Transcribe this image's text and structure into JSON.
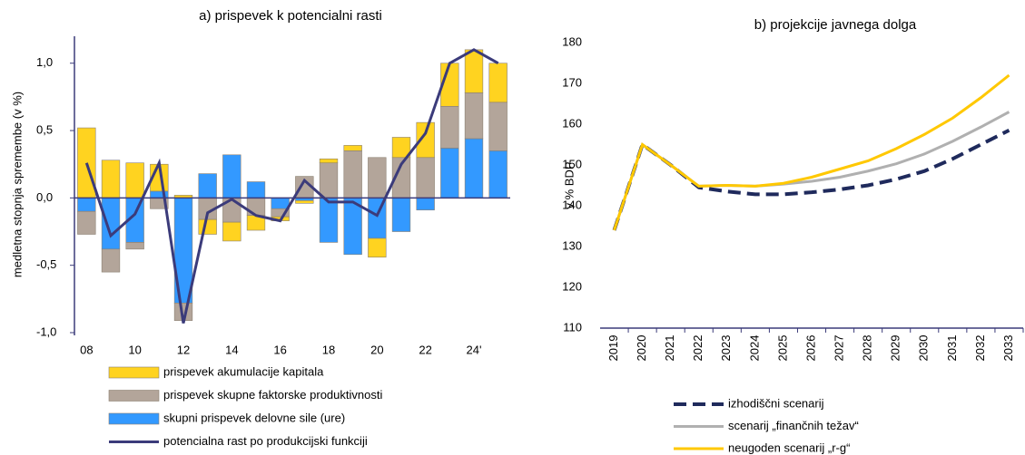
{
  "chart_data": [
    {
      "type": "bar",
      "stacked": true,
      "title": "a) prispevek k potencialni rasti",
      "ylabel": "medletna stopnja spremembe (v %)",
      "categories": [
        "08",
        null,
        "10",
        null,
        "12",
        null,
        "14",
        null,
        "16",
        null,
        "18",
        null,
        "20",
        null,
        "22",
        null,
        "24'",
        null
      ],
      "ylim": [
        -1.0,
        1.2
      ],
      "yticks": [
        {
          "value": 1.0,
          "label": "1,0"
        },
        {
          "value": 0.5,
          "label": "0,5"
        },
        {
          "value": 0,
          "label": "0,0"
        },
        {
          "value": -0.5,
          "label": "-0,5"
        },
        {
          "value": -1.0,
          "label": "-1,0"
        }
      ],
      "series": [
        {
          "name": "skupni prispevek delovne sile (ure)",
          "type": "bar",
          "color": "#3399ff",
          "values": [
            -0.1,
            -0.38,
            -0.33,
            0.05,
            -0.78,
            0.18,
            0.32,
            0.12,
            -0.08,
            -0.02,
            -0.33,
            -0.42,
            -0.3,
            -0.25,
            -0.09,
            0.37,
            0.44,
            0.35
          ]
        },
        {
          "name": "prispevek skupne faktorske produktivnosti",
          "type": "bar",
          "color": "#b3a59a",
          "values": [
            -0.17,
            -0.17,
            -0.05,
            -0.08,
            -0.13,
            -0.16,
            -0.18,
            -0.13,
            -0.06,
            0.16,
            0.26,
            0.35,
            0.3,
            0.3,
            0.3,
            0.31,
            0.34,
            0.36
          ]
        },
        {
          "name": "prispevek akumulacije kapitala",
          "type": "bar",
          "color": "#ffd320",
          "values": [
            0.52,
            0.28,
            0.26,
            0.2,
            0.02,
            -0.11,
            -0.14,
            -0.11,
            -0.03,
            -0.02,
            0.03,
            0.04,
            -0.14,
            0.15,
            0.26,
            0.32,
            0.32,
            0.29
          ]
        },
        {
          "name": "potencialna rast po produkcijski funkciji",
          "type": "line",
          "color": "#3b3b7a",
          "values": [
            0.26,
            -0.28,
            -0.12,
            0.26,
            -0.93,
            -0.11,
            -0.01,
            -0.13,
            -0.17,
            0.13,
            -0.03,
            -0.03,
            -0.13,
            0.25,
            0.48,
            1.0,
            1.1,
            1.0
          ]
        }
      ]
    },
    {
      "type": "line",
      "title": "b) projekcije javnega dolga",
      "ylabel": "v % BDP",
      "categories": [
        "2019",
        "2020",
        "2021",
        "2022",
        "2023",
        "2024",
        "2025",
        "2026",
        "2027",
        "2028",
        "2029",
        "2030",
        "2031",
        "2032",
        "2033"
      ],
      "ylim": [
        110,
        180
      ],
      "yticks": [
        110,
        120,
        130,
        140,
        150,
        160,
        170,
        180
      ],
      "series": [
        {
          "name": "izhodiščni scenarij",
          "color": "#1f2a5c",
          "style": "dashed",
          "values": [
            134,
            155,
            150,
            144.5,
            143.5,
            142.8,
            142.8,
            143.3,
            144,
            145,
            146.5,
            148.5,
            151.5,
            155,
            158.5
          ]
        },
        {
          "name": "scenarij „finančnih težav“",
          "color": "#b0b0b0",
          "style": "solid",
          "values": [
            134,
            155,
            150,
            144.8,
            145,
            144.8,
            145.3,
            146,
            147,
            148.5,
            150.3,
            152.7,
            155.8,
            159.3,
            163
          ]
        },
        {
          "name": "neugoden scenarij „r-g“",
          "color": "#ffc800",
          "style": "solid",
          "values": [
            134,
            155,
            150,
            144.8,
            145,
            144.8,
            145.5,
            147,
            149,
            151,
            154,
            157.5,
            161.5,
            166.5,
            172
          ]
        }
      ]
    }
  ]
}
